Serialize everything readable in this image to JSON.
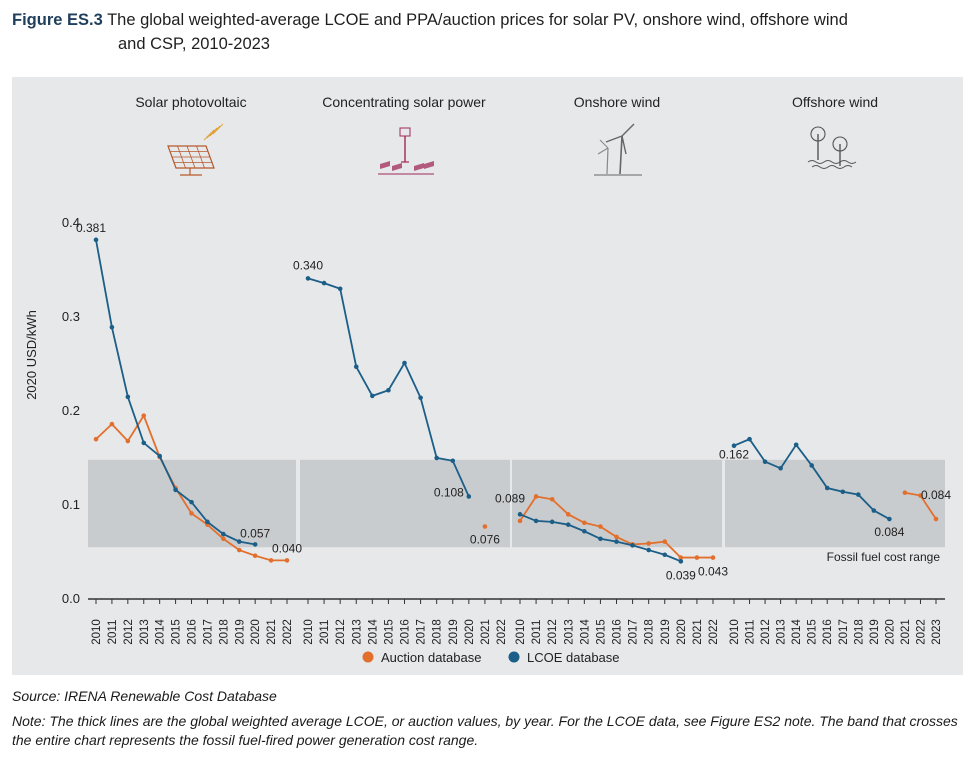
{
  "figure": {
    "number": "Figure ES.3",
    "title_line1": "The global weighted-average LCOE and PPA/auction prices for solar PV, onshore wind, offshore wind",
    "title_line2": "and CSP, 2010-2023"
  },
  "source": "Source: IRENA Renewable Cost Database",
  "note": "Note: The thick lines are the global weighted average LCOE, or auction values, by year. For the LCOE data, see Figure ES2 note. The band that crosses the entire chart represents the fossil fuel-fired power generation cost range.",
  "colors": {
    "auction": "#e36f2d",
    "lcoe": "#1b5e87",
    "band": "#c9cccf",
    "bg": "#e6e8ea",
    "icon": "#a02a5a"
  },
  "chart_data": {
    "type": "line",
    "ylabel": "2020 USD/kWh",
    "ylim": [
      0,
      0.4
    ],
    "yticks": [
      "0.0",
      "0.1",
      "0.2",
      "0.3",
      "0.4"
    ],
    "band": {
      "label": "Fossil fuel cost range",
      "range": [
        0.054,
        0.147
      ]
    },
    "legend": {
      "placement": "bottom-center",
      "items": [
        "Auction database",
        "LCOE database"
      ]
    },
    "panels": [
      {
        "title": "Solar photovoltaic",
        "icon": "solar-panel-icon",
        "x": [
          "2010",
          "2011",
          "2012",
          "2013",
          "2014",
          "2015",
          "2016",
          "2017",
          "2018",
          "2019",
          "2020",
          "2021",
          "2022"
        ],
        "lcoe": [
          0.381,
          0.288,
          0.214,
          0.165,
          0.151,
          0.115,
          0.102,
          0.081,
          0.068,
          0.06,
          0.057,
          null,
          null
        ],
        "auction": [
          0.169,
          0.185,
          0.167,
          0.194,
          0.15,
          0.117,
          0.09,
          0.078,
          0.063,
          0.051,
          0.045,
          0.04,
          0.04
        ],
        "labels": [
          {
            "series": "lcoe",
            "x": "2010",
            "text": "0.381"
          },
          {
            "series": "lcoe",
            "x": "2020",
            "text": "0.057"
          },
          {
            "series": "auction",
            "x": "2022",
            "text": "0.040"
          }
        ]
      },
      {
        "title": "Concentrating solar power",
        "icon": "csp-tower-icon",
        "x": [
          "2010",
          "2011",
          "2012",
          "2013",
          "2014",
          "2015",
          "2016",
          "2017",
          "2018",
          "2019",
          "2020",
          "2021",
          "2022"
        ],
        "lcoe": [
          0.34,
          0.335,
          0.329,
          0.246,
          0.215,
          0.221,
          0.25,
          0.213,
          0.149,
          0.146,
          0.108,
          null,
          null
        ],
        "auction": [
          null,
          null,
          null,
          null,
          null,
          null,
          null,
          null,
          null,
          null,
          null,
          0.076,
          null
        ],
        "labels": [
          {
            "series": "lcoe",
            "x": "2010",
            "text": "0.340"
          },
          {
            "series": "lcoe",
            "x": "2020",
            "text": "0.108"
          },
          {
            "series": "auction",
            "x": "2021",
            "text": "0.076"
          }
        ]
      },
      {
        "title": "Onshore wind",
        "icon": "onshore-wind-turbine-icon",
        "x": [
          "2010",
          "2011",
          "2012",
          "2013",
          "2014",
          "2015",
          "2016",
          "2017",
          "2018",
          "2019",
          "2020",
          "2021",
          "2022"
        ],
        "lcoe": [
          0.089,
          0.082,
          0.081,
          0.078,
          0.071,
          0.063,
          0.06,
          0.056,
          0.051,
          0.046,
          0.039,
          null,
          null
        ],
        "auction": [
          0.082,
          0.108,
          0.105,
          0.089,
          0.08,
          0.076,
          0.065,
          0.057,
          0.058,
          0.06,
          0.043,
          0.043,
          0.043
        ],
        "labels": [
          {
            "series": "lcoe",
            "x": "2010",
            "text": "0.089"
          },
          {
            "series": "lcoe",
            "x": "2020",
            "text": "0.039"
          },
          {
            "series": "auction",
            "x": "2022",
            "text": "0.043"
          }
        ]
      },
      {
        "title": "Offshore wind",
        "icon": "offshore-wind-turbine-icon",
        "x": [
          "2010",
          "2011",
          "2012",
          "2013",
          "2014",
          "2015",
          "2016",
          "2017",
          "2018",
          "2019",
          "2020",
          "2021",
          "2022",
          "2023"
        ],
        "lcoe": [
          0.162,
          0.169,
          0.145,
          0.138,
          0.163,
          0.141,
          0.117,
          0.113,
          0.11,
          0.093,
          0.084,
          null,
          null,
          null
        ],
        "auction": [
          null,
          null,
          null,
          null,
          null,
          null,
          null,
          null,
          null,
          null,
          null,
          0.112,
          0.109,
          0.084
        ],
        "labels": [
          {
            "series": "lcoe",
            "x": "2010",
            "text": "0.162"
          },
          {
            "series": "lcoe",
            "x": "2020",
            "text": "0.084"
          },
          {
            "series": "auction",
            "x": "2023",
            "text": "0.084"
          }
        ]
      }
    ]
  }
}
